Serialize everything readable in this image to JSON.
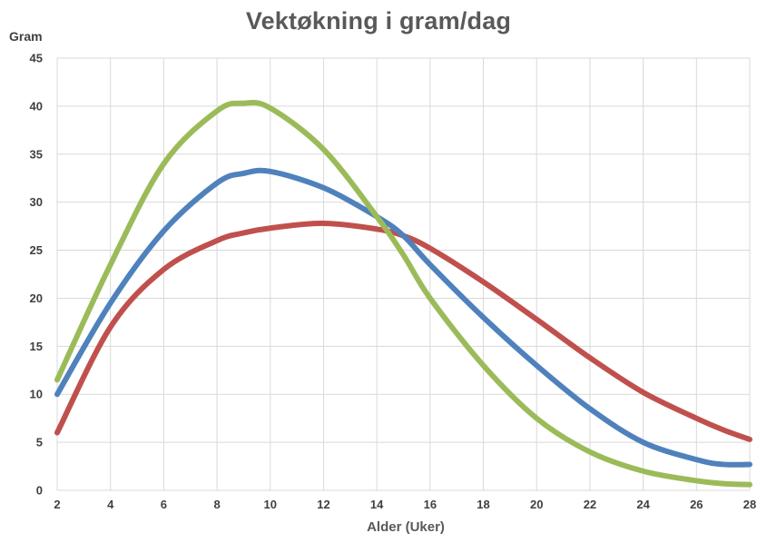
{
  "chart_data": {
    "type": "line",
    "title": "Vektøkning i gram/dag",
    "ylabel": "Gram",
    "xlabel": "Alder (Uker)",
    "xlim": [
      2,
      28
    ],
    "ylim": [
      0,
      45
    ],
    "x_ticks": [
      "2",
      "4",
      "6",
      "8",
      "10",
      "12",
      "14",
      "16",
      "18",
      "20",
      "22",
      "24",
      "26",
      "28"
    ],
    "y_ticks": [
      "0",
      "5",
      "10",
      "15",
      "20",
      "25",
      "30",
      "35",
      "40",
      "45"
    ],
    "grid": true,
    "legend": "none",
    "x": [
      2,
      4,
      6,
      8,
      9,
      10,
      12,
      14,
      15,
      16,
      18,
      20,
      22,
      24,
      26,
      27,
      28
    ],
    "series": [
      {
        "color": "#4F81BD",
        "values": [
          10,
          19.5,
          27,
          32,
          33,
          33.2,
          31.5,
          28.5,
          26.5,
          23.5,
          18,
          13,
          8.5,
          5,
          3.2,
          2.7,
          2.7
        ]
      },
      {
        "color": "#C0504D",
        "values": [
          6,
          17,
          23,
          26,
          26.8,
          27.3,
          27.8,
          27.2,
          26.5,
          25.2,
          21.7,
          17.8,
          13.8,
          10.2,
          7.5,
          6.3,
          5.3
        ]
      },
      {
        "color": "#9BBB59",
        "values": [
          11.5,
          23.5,
          34,
          39.5,
          40.3,
          39.8,
          35.5,
          28.5,
          24.5,
          20,
          13,
          7.5,
          4,
          2,
          1,
          0.7,
          0.6
        ]
      }
    ]
  }
}
